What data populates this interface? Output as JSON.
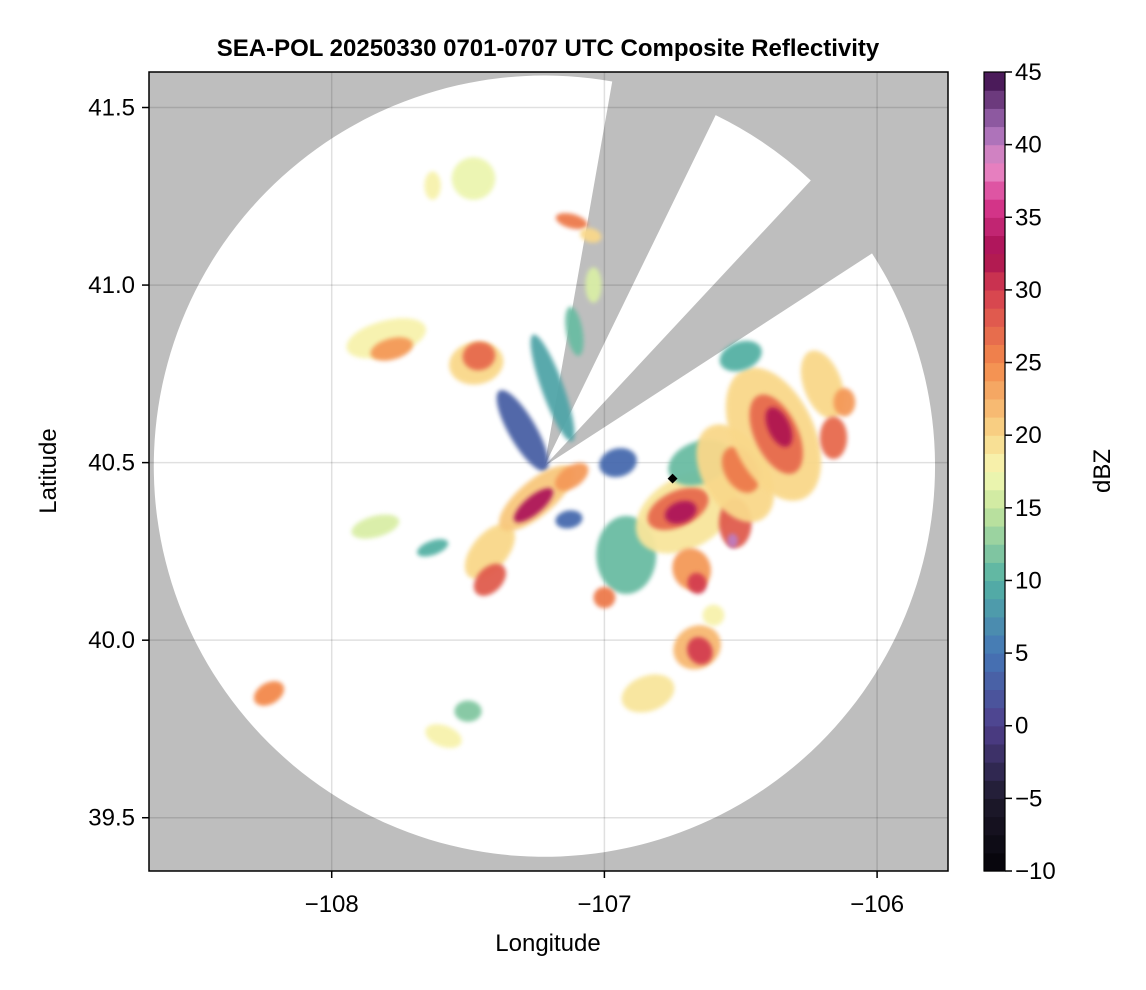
{
  "chart_data": {
    "type": "heatmap",
    "title": "SEA-POL 20250330 0701-0707 UTC Composite Reflectivity",
    "xlabel": "Longitude",
    "ylabel": "Latitude",
    "xlim": [
      -108.67,
      -105.74
    ],
    "ylim": [
      39.35,
      41.6
    ],
    "x_ticks": [
      -108,
      -107,
      -106
    ],
    "x_tick_labels": [
      "−108",
      "−107",
      "−106"
    ],
    "y_ticks": [
      39.5,
      40.0,
      40.5,
      41.0,
      41.5
    ],
    "y_tick_labels": [
      "39.5",
      "40.0",
      "40.5",
      "41.0",
      "41.5"
    ],
    "grid": true,
    "colorbar": {
      "label": "dBZ",
      "min": -10,
      "max": 45,
      "ticks": [
        -10,
        -5,
        0,
        5,
        10,
        15,
        20,
        25,
        30,
        35,
        40,
        45
      ],
      "tick_labels": [
        "−10",
        "−5",
        "0",
        "5",
        "10",
        "15",
        "20",
        "25",
        "30",
        "35",
        "40",
        "45"
      ],
      "colormap": "Spectral (reversed)"
    },
    "background_color": "#bebebe",
    "coverage_color": "#ffffff",
    "radar_center": {
      "lon": -107.22,
      "lat": 40.49
    },
    "radar_max_range_deg_lat": 1.1,
    "blocked_sectors_deg_from_north": [
      [
        10,
        26
      ],
      [
        43,
        57
      ]
    ],
    "point_marker": {
      "lon": -106.75,
      "lat": 40.455,
      "color": "#000000"
    },
    "echo_cells": [
      {
        "lon": -108.23,
        "lat": 39.85,
        "rx": 0.06,
        "ry": 0.03,
        "dbz": 25,
        "rot": -30
      },
      {
        "lon": -107.59,
        "lat": 39.73,
        "rx": 0.07,
        "ry": 0.03,
        "dbz": 18,
        "rot": 20
      },
      {
        "lon": -107.5,
        "lat": 39.8,
        "rx": 0.05,
        "ry": 0.03,
        "dbz": 12,
        "rot": 0
      },
      {
        "lon": -107.84,
        "lat": 40.32,
        "rx": 0.09,
        "ry": 0.03,
        "dbz": 16,
        "rot": -15
      },
      {
        "lon": -107.63,
        "lat": 40.26,
        "rx": 0.06,
        "ry": 0.02,
        "dbz": 10,
        "rot": -20
      },
      {
        "lon": -107.8,
        "lat": 40.85,
        "rx": 0.15,
        "ry": 0.05,
        "dbz": 18,
        "rot": -15
      },
      {
        "lon": -107.78,
        "lat": 40.82,
        "rx": 0.08,
        "ry": 0.03,
        "dbz": 24,
        "rot": -15
      },
      {
        "lon": -107.47,
        "lat": 40.78,
        "rx": 0.1,
        "ry": 0.06,
        "dbz": 20,
        "rot": -10
      },
      {
        "lon": -107.46,
        "lat": 40.8,
        "rx": 0.06,
        "ry": 0.04,
        "dbz": 27,
        "rot": -10
      },
      {
        "lon": -107.48,
        "lat": 41.3,
        "rx": 0.08,
        "ry": 0.06,
        "dbz": 17,
        "rot": 0
      },
      {
        "lon": -107.63,
        "lat": 41.28,
        "rx": 0.03,
        "ry": 0.04,
        "dbz": 18,
        "rot": 0
      },
      {
        "lon": -107.12,
        "lat": 41.18,
        "rx": 0.06,
        "ry": 0.02,
        "dbz": 26,
        "rot": 15
      },
      {
        "lon": -107.05,
        "lat": 41.14,
        "rx": 0.04,
        "ry": 0.02,
        "dbz": 20,
        "rot": 15
      },
      {
        "lon": -107.04,
        "lat": 41.0,
        "rx": 0.03,
        "ry": 0.05,
        "dbz": 16,
        "rot": 0
      },
      {
        "lon": -107.3,
        "lat": 40.59,
        "rx": 0.05,
        "ry": 0.13,
        "dbz": 3,
        "rot": -30
      },
      {
        "lon": -107.19,
        "lat": 40.71,
        "rx": 0.04,
        "ry": 0.16,
        "dbz": 9,
        "rot": -20
      },
      {
        "lon": -107.11,
        "lat": 40.87,
        "rx": 0.03,
        "ry": 0.07,
        "dbz": 11,
        "rot": -10
      },
      {
        "lon": -107.42,
        "lat": 40.25,
        "rx": 0.12,
        "ry": 0.05,
        "dbz": 20,
        "rot": -50
      },
      {
        "lon": -107.42,
        "lat": 40.17,
        "rx": 0.07,
        "ry": 0.035,
        "dbz": 28,
        "rot": -45
      },
      {
        "lon": -107.25,
        "lat": 40.4,
        "rx": 0.17,
        "ry": 0.05,
        "dbz": 21,
        "rot": -40
      },
      {
        "lon": -107.26,
        "lat": 40.38,
        "rx": 0.09,
        "ry": 0.025,
        "dbz": 33,
        "rot": -40
      },
      {
        "lon": -107.12,
        "lat": 40.46,
        "rx": 0.07,
        "ry": 0.03,
        "dbz": 24,
        "rot": -35
      },
      {
        "lon": -107.13,
        "lat": 40.34,
        "rx": 0.05,
        "ry": 0.025,
        "dbz": 4,
        "rot": -10
      },
      {
        "lon": -106.95,
        "lat": 40.5,
        "rx": 0.07,
        "ry": 0.04,
        "dbz": 4,
        "rot": -15
      },
      {
        "lon": -106.92,
        "lat": 40.24,
        "rx": 0.11,
        "ry": 0.11,
        "dbz": 11,
        "rot": 0
      },
      {
        "lon": -106.7,
        "lat": 40.36,
        "rx": 0.2,
        "ry": 0.1,
        "dbz": 19,
        "rot": -30
      },
      {
        "lon": -106.73,
        "lat": 40.37,
        "rx": 0.12,
        "ry": 0.05,
        "dbz": 27,
        "rot": -25
      },
      {
        "lon": -106.72,
        "lat": 40.36,
        "rx": 0.06,
        "ry": 0.03,
        "dbz": 33,
        "rot": -20
      },
      {
        "lon": -106.65,
        "lat": 40.5,
        "rx": 0.12,
        "ry": 0.06,
        "dbz": 11,
        "rot": -20
      },
      {
        "lon": -106.52,
        "lat": 40.33,
        "rx": 0.06,
        "ry": 0.07,
        "dbz": 28,
        "rot": 0
      },
      {
        "lon": -106.53,
        "lat": 40.28,
        "rx": 0.02,
        "ry": 0.02,
        "dbz": 40,
        "rot": 0
      },
      {
        "lon": -106.52,
        "lat": 40.47,
        "rx": 0.12,
        "ry": 0.15,
        "dbz": 20,
        "rot": -30
      },
      {
        "lon": -106.5,
        "lat": 40.48,
        "rx": 0.06,
        "ry": 0.07,
        "dbz": 26,
        "rot": -30
      },
      {
        "lon": -106.68,
        "lat": 40.2,
        "rx": 0.07,
        "ry": 0.06,
        "dbz": 24,
        "rot": -20
      },
      {
        "lon": -106.66,
        "lat": 40.16,
        "rx": 0.035,
        "ry": 0.03,
        "dbz": 30,
        "rot": -20
      },
      {
        "lon": -107.0,
        "lat": 40.12,
        "rx": 0.04,
        "ry": 0.03,
        "dbz": 26,
        "rot": 0
      },
      {
        "lon": -106.38,
        "lat": 40.58,
        "rx": 0.15,
        "ry": 0.2,
        "dbz": 20,
        "rot": -25
      },
      {
        "lon": -106.37,
        "lat": 40.58,
        "rx": 0.08,
        "ry": 0.12,
        "dbz": 27,
        "rot": -25
      },
      {
        "lon": -106.36,
        "lat": 40.6,
        "rx": 0.04,
        "ry": 0.06,
        "dbz": 32,
        "rot": -25
      },
      {
        "lon": -106.2,
        "lat": 40.72,
        "rx": 0.07,
        "ry": 0.1,
        "dbz": 20,
        "rot": -20
      },
      {
        "lon": -106.16,
        "lat": 40.57,
        "rx": 0.05,
        "ry": 0.06,
        "dbz": 27,
        "rot": 0
      },
      {
        "lon": -106.12,
        "lat": 40.67,
        "rx": 0.04,
        "ry": 0.04,
        "dbz": 24,
        "rot": 0
      },
      {
        "lon": -106.5,
        "lat": 40.8,
        "rx": 0.08,
        "ry": 0.04,
        "dbz": 10,
        "rot": -20
      },
      {
        "lon": -106.66,
        "lat": 39.98,
        "rx": 0.09,
        "ry": 0.06,
        "dbz": 22,
        "rot": -30
      },
      {
        "lon": -106.65,
        "lat": 39.97,
        "rx": 0.045,
        "ry": 0.04,
        "dbz": 30,
        "rot": -30
      },
      {
        "lon": -106.84,
        "lat": 39.85,
        "rx": 0.1,
        "ry": 0.05,
        "dbz": 19,
        "rot": -20
      },
      {
        "lon": -106.6,
        "lat": 40.07,
        "rx": 0.04,
        "ry": 0.03,
        "dbz": 18,
        "rot": 0
      }
    ]
  }
}
